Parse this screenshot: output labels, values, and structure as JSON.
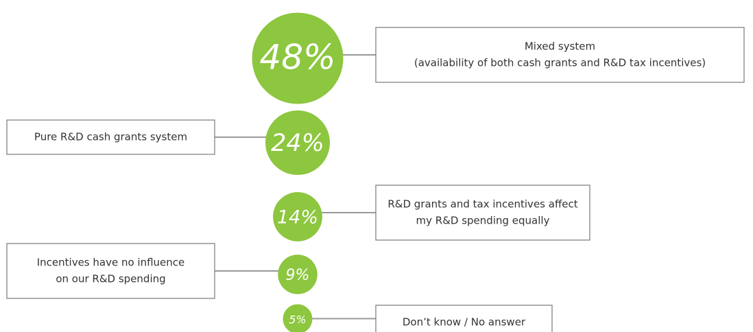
{
  "chart_data": {
    "type": "bubble",
    "categories": [
      [
        "Mixed system",
        "(availability of both cash grants and R&D tax incentives)"
      ],
      [
        "Pure R&D cash grants system"
      ],
      [
        "R&D grants and tax incentives affect",
        "my R&D spending equally"
      ],
      [
        "Incentives have no influence",
        "on our R&D spending"
      ],
      [
        "Don’t know / No answer"
      ]
    ],
    "values": [
      48,
      24,
      14,
      9,
      5
    ],
    "value_labels": [
      "48%",
      "24%",
      "14%",
      "9%",
      "5%"
    ],
    "color": "#8dc63f"
  }
}
